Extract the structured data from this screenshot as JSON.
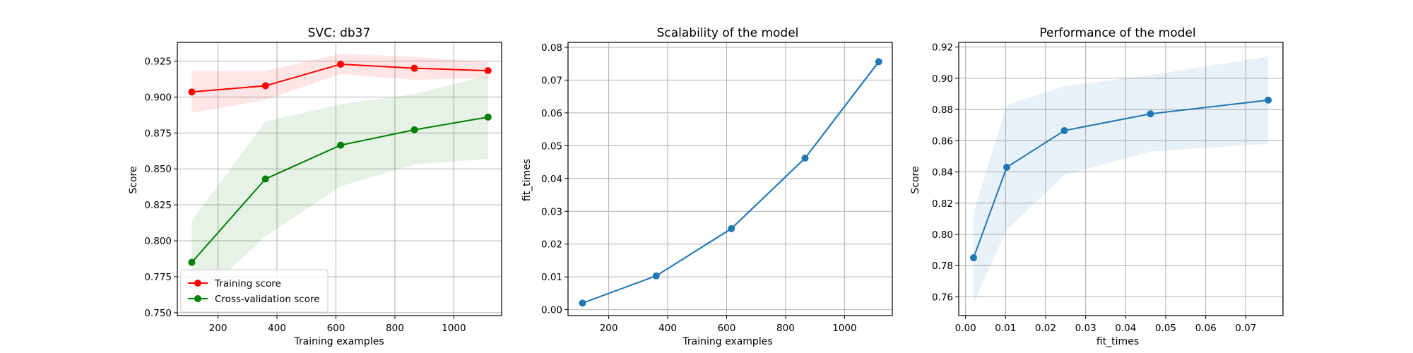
{
  "colors": {
    "red": "#ff0000",
    "green": "#008000",
    "blue": "#1f77b4",
    "grid": "#b0b0b0",
    "red_band": "#ff0000",
    "green_band": "#008000",
    "blue_band": "#1f77b4"
  },
  "chart_data": [
    {
      "type": "line",
      "title": "SVC: db37",
      "xlabel": "Training examples",
      "ylabel": "Score",
      "xlim": [
        62,
        1162
      ],
      "ylim": [
        0.748,
        0.938
      ],
      "xticks": [
        200,
        400,
        600,
        800,
        1000
      ],
      "yticks": [
        0.75,
        0.775,
        0.8,
        0.825,
        0.85,
        0.875,
        0.9,
        0.925
      ],
      "xtick_labels": [
        "200",
        "400",
        "600",
        "800",
        "1000"
      ],
      "ytick_labels": [
        "0.750",
        "0.775",
        "0.800",
        "0.825",
        "0.850",
        "0.875",
        "0.900",
        "0.925"
      ],
      "grid": true,
      "legend": "lower-left",
      "series": [
        {
          "name": "Training score",
          "color": "red",
          "x": [
            111,
            361,
            616,
            866,
            1116
          ],
          "y": [
            0.9035,
            0.9078,
            0.9228,
            0.92,
            0.9183
          ],
          "y_upper": [
            0.918,
            0.918,
            0.93,
            0.928,
            0.924
          ],
          "y_lower": [
            0.889,
            0.898,
            0.916,
            0.912,
            0.913
          ]
        },
        {
          "name": "Cross-validation score",
          "color": "green",
          "x": [
            111,
            361,
            616,
            866,
            1116
          ],
          "y": [
            0.785,
            0.843,
            0.8665,
            0.8772,
            0.886
          ],
          "y_upper": [
            0.814,
            0.883,
            0.895,
            0.902,
            0.915
          ],
          "y_lower": [
            0.756,
            0.803,
            0.838,
            0.853,
            0.857
          ]
        }
      ]
    },
    {
      "type": "line",
      "title": "Scalability of the model",
      "xlabel": "Training examples",
      "ylabel": "fit_times",
      "xlim": [
        62,
        1162
      ],
      "ylim": [
        -0.0018,
        0.0815
      ],
      "xticks": [
        200,
        400,
        600,
        800,
        1000
      ],
      "yticks": [
        0.0,
        0.01,
        0.02,
        0.03,
        0.04,
        0.05,
        0.06,
        0.07,
        0.08
      ],
      "xtick_labels": [
        "200",
        "400",
        "600",
        "800",
        "1000"
      ],
      "ytick_labels": [
        "0.00",
        "0.01",
        "0.02",
        "0.03",
        "0.04",
        "0.05",
        "0.06",
        "0.07",
        "0.08"
      ],
      "grid": true,
      "series": [
        {
          "color": "blue",
          "x": [
            111,
            361,
            616,
            866,
            1116
          ],
          "y": [
            0.002,
            0.0103,
            0.0247,
            0.0462,
            0.0756
          ],
          "y_upper": [
            0.0022,
            0.0106,
            0.0252,
            0.0468,
            0.0764
          ],
          "y_lower": [
            0.0018,
            0.01,
            0.0242,
            0.0456,
            0.0748
          ]
        }
      ]
    },
    {
      "type": "line",
      "title": "Performance of the model",
      "xlabel": "fit_times",
      "ylabel": "Score",
      "xlim": [
        -0.0017,
        0.0793
      ],
      "ylim": [
        0.748,
        0.923
      ],
      "xticks": [
        0.0,
        0.01,
        0.02,
        0.03,
        0.04,
        0.05,
        0.06,
        0.07
      ],
      "yticks": [
        0.76,
        0.78,
        0.8,
        0.82,
        0.84,
        0.86,
        0.88,
        0.9,
        0.92
      ],
      "xtick_labels": [
        "0.00",
        "0.01",
        "0.02",
        "0.03",
        "0.04",
        "0.05",
        "0.06",
        "0.07"
      ],
      "ytick_labels": [
        "0.76",
        "0.78",
        "0.80",
        "0.82",
        "0.84",
        "0.86",
        "0.88",
        "0.90",
        "0.92"
      ],
      "grid": true,
      "series": [
        {
          "color": "blue",
          "x": [
            0.002,
            0.0103,
            0.0247,
            0.0462,
            0.0756
          ],
          "y": [
            0.785,
            0.843,
            0.8665,
            0.8772,
            0.886
          ],
          "y_upper": [
            0.814,
            0.883,
            0.895,
            0.902,
            0.914
          ],
          "y_lower": [
            0.756,
            0.803,
            0.838,
            0.853,
            0.858
          ]
        }
      ]
    }
  ]
}
